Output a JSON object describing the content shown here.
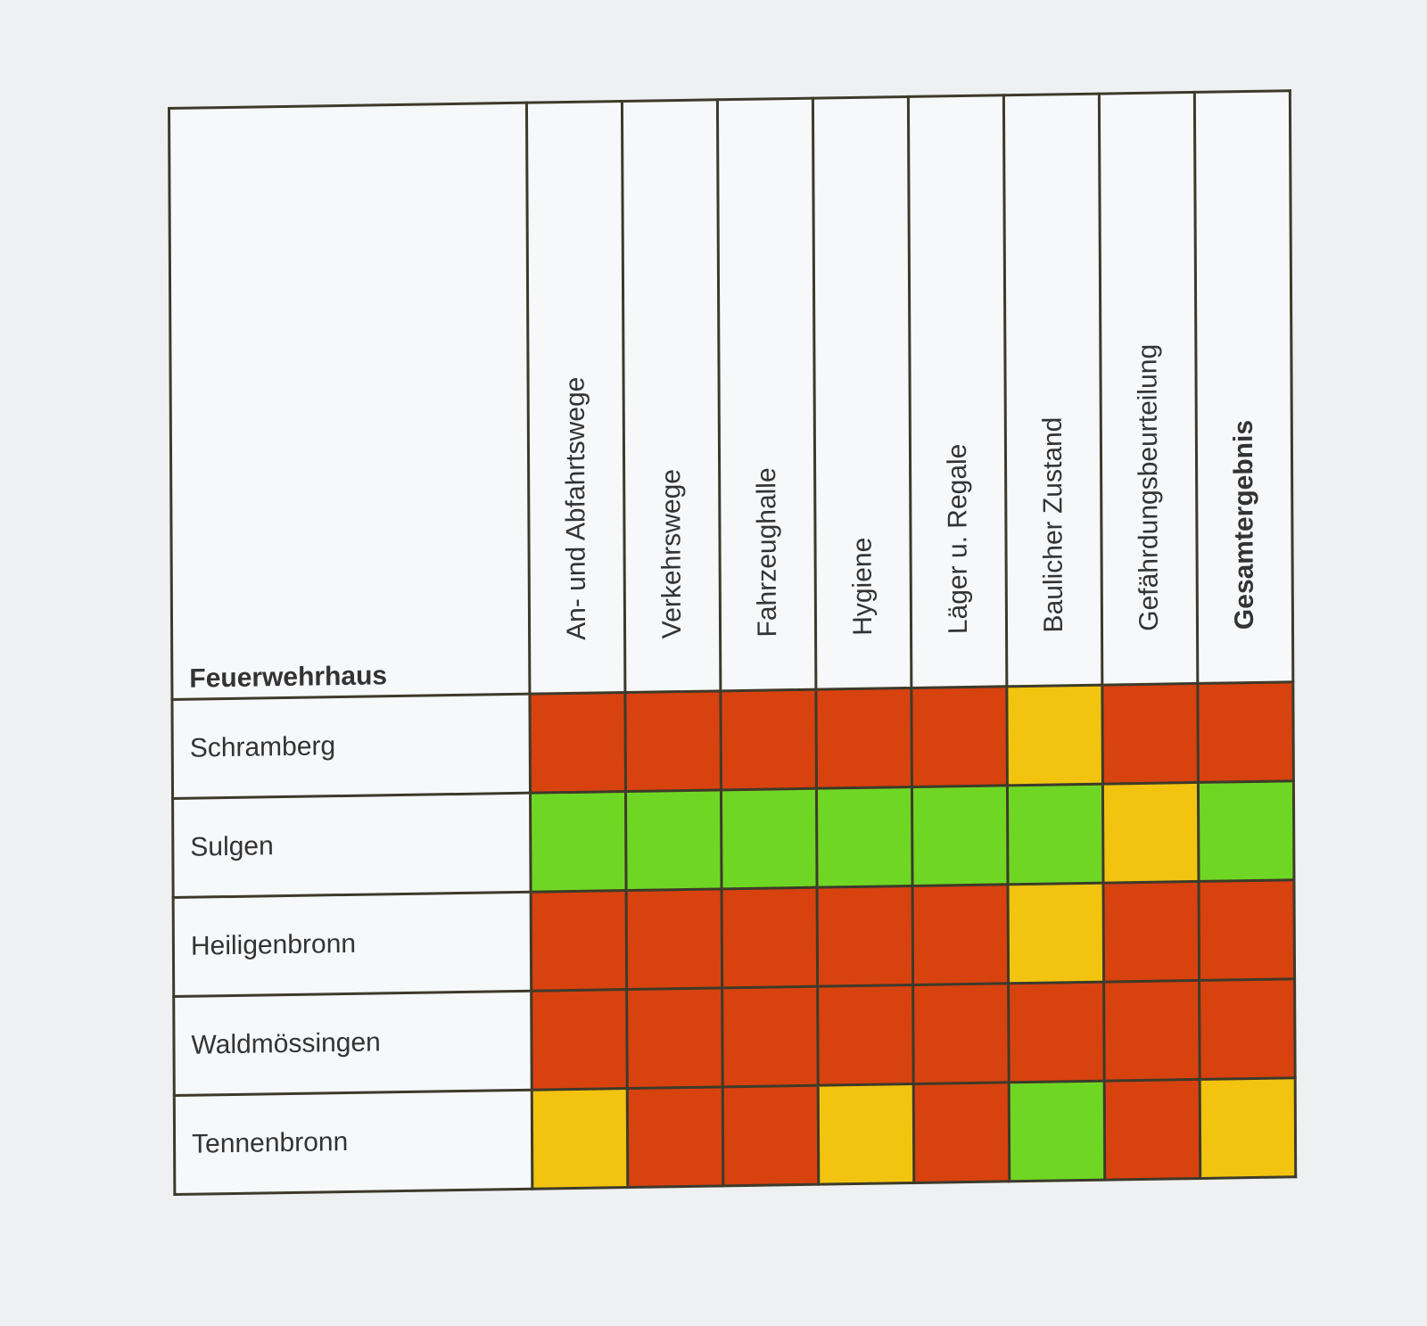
{
  "colors": {
    "red": "#d8420f",
    "yellow": "#f2c410",
    "green": "#6fd723"
  },
  "chart_data": {
    "type": "heatmap",
    "row_header": "Feuerwehrhaus",
    "columns": [
      "An- und Abfahrtswege",
      "Verkehrswege",
      "Fahrzeughalle",
      "Hygiene",
      "Läger u. Regale",
      "Baulicher Zustand",
      "Gefährdungsbeurteilung",
      "Gesamtergebnis"
    ],
    "bold_columns": [
      "Gesamtergebnis"
    ],
    "rows": [
      {
        "name": "Schramberg",
        "values": [
          "red",
          "red",
          "red",
          "red",
          "red",
          "yellow",
          "red",
          "red"
        ]
      },
      {
        "name": "Sulgen",
        "values": [
          "green",
          "green",
          "green",
          "green",
          "green",
          "green",
          "yellow",
          "green"
        ]
      },
      {
        "name": "Heiligenbronn",
        "values": [
          "red",
          "red",
          "red",
          "red",
          "red",
          "yellow",
          "red",
          "red"
        ]
      },
      {
        "name": "Waldmössingen",
        "values": [
          "red",
          "red",
          "red",
          "red",
          "red",
          "red",
          "red",
          "red"
        ]
      },
      {
        "name": "Tennenbronn",
        "values": [
          "yellow",
          "red",
          "red",
          "yellow",
          "red",
          "green",
          "red",
          "yellow"
        ]
      }
    ]
  }
}
